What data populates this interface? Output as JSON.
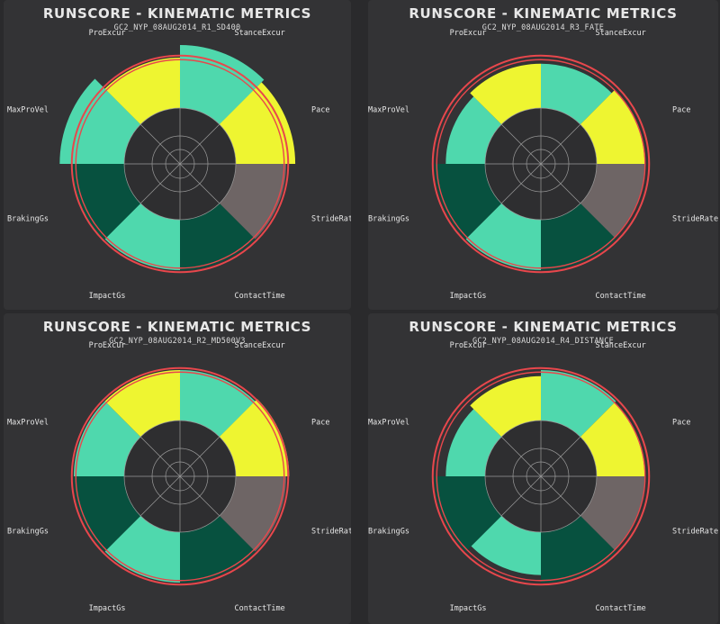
{
  "colors": {
    "background": "#2a2a2c",
    "panel": "#333335",
    "yellow": "#eef531",
    "mint": "#4fd8ad",
    "dark_green": "#07513f",
    "gray": "#6e6565",
    "inner": "#2e2e30",
    "ring": "#e8474c"
  },
  "chart_data": [
    {
      "type": "radial-bar",
      "title": "RUNSCORE - KINEMATIC METRICS",
      "subtitle": "GC2_NYP_08AUG2014_R1_SD400",
      "categories": [
        "StanceExcur",
        "Pace",
        "StrideRate",
        "ContactTime",
        "ImpactGs",
        "BrakingGs",
        "MaxProVel",
        "ProExcur"
      ],
      "segment_colors": [
        "mint",
        "yellow",
        "gray",
        "dark_green",
        "mint",
        "dark_green",
        "mint",
        "yellow"
      ],
      "values": [
        1.0,
        1.0,
        1.0,
        1.0,
        1.0,
        1.0,
        1.0,
        1.0
      ],
      "outer_values": [
        1.25,
        1.18,
        0,
        0,
        0,
        1.04,
        1.28,
        0
      ],
      "ring_value": 1.04
    },
    {
      "type": "radial-bar",
      "title": "RUNSCORE - KINEMATIC METRICS",
      "subtitle": "GC2_NYP_08AUG2014_R3_FATE",
      "categories": [
        "StanceExcur",
        "Pace",
        "StrideRate",
        "ContactTime",
        "ImpactGs",
        "BrakingGs",
        "MaxProVel",
        "ProExcur"
      ],
      "segment_colors": [
        "mint",
        "yellow",
        "gray",
        "dark_green",
        "mint",
        "dark_green",
        "mint",
        "yellow"
      ],
      "values": [
        0.88,
        0.95,
        0.95,
        1.0,
        1.0,
        1.0,
        0.78,
        0.88
      ],
      "outer_values": [
        0,
        0,
        0,
        0,
        0,
        0,
        0,
        0
      ],
      "ring_value": 1.04
    },
    {
      "type": "radial-bar",
      "title": "RUNSCORE - KINEMATIC METRICS",
      "subtitle": "GC2_NYP_08AUG2014_R2_MD500V3",
      "categories": [
        "StanceExcur",
        "Pace",
        "StrideRate",
        "ContactTime",
        "ImpactGs",
        "BrakingGs",
        "MaxProVel",
        "ProExcur"
      ],
      "segment_colors": [
        "mint",
        "yellow",
        "gray",
        "dark_green",
        "mint",
        "dark_green",
        "mint",
        "yellow"
      ],
      "values": [
        1.0,
        1.0,
        1.0,
        1.0,
        1.0,
        1.0,
        1.0,
        1.0
      ],
      "outer_values": [
        0,
        1.06,
        0,
        0,
        0,
        0,
        0,
        0
      ],
      "ring_value": 1.04
    },
    {
      "type": "radial-bar",
      "title": "RUNSCORE - KINEMATIC METRICS",
      "subtitle": "GC2_NYP_08AUG2014_R4_DISTANCE",
      "categories": [
        "StanceExcur",
        "Pace",
        "StrideRate",
        "ContactTime",
        "ImpactGs",
        "BrakingGs",
        "MaxProVel",
        "ProExcur"
      ],
      "segment_colors": [
        "mint",
        "yellow",
        "gray",
        "dark_green",
        "mint",
        "dark_green",
        "mint",
        "yellow"
      ],
      "values": [
        1.0,
        0.95,
        0.95,
        1.0,
        0.85,
        1.0,
        0.78,
        0.88
      ],
      "outer_values": [
        0,
        0,
        0,
        0,
        0,
        0,
        0,
        0
      ],
      "ring_value": 1.04
    }
  ]
}
